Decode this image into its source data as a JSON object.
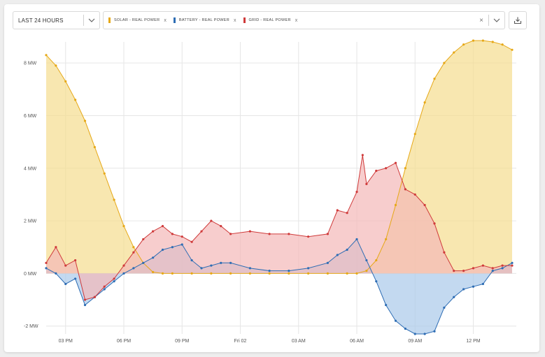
{
  "toolbar": {
    "range_label": "LAST 24 HOURS",
    "series_chips": [
      {
        "label": "SOLAR - REAL POWER",
        "color": "#e6a817"
      },
      {
        "label": "BATTERY - REAL POWER",
        "color": "#2e6db4"
      },
      {
        "label": "GRID - REAL POWER",
        "color": "#cf3a3a"
      }
    ],
    "clear_glyph": "×",
    "chip_remove_glyph": "x",
    "icons": [
      "chevron-down-icon",
      "close-icon",
      "download-icon"
    ]
  },
  "chart_data": {
    "type": "area",
    "x_unit": "hours",
    "xlim": [
      13.5,
      37.5
    ],
    "ylim": [
      -2.3,
      8.8
    ],
    "y_ticks": [
      -2,
      0,
      2,
      4,
      6,
      8
    ],
    "y_tick_labels": [
      "-2 MW",
      "0 MW",
      "2 MW",
      "4 MW",
      "6 MW",
      "8 MW"
    ],
    "x_ticks": [
      14.5,
      17.5,
      20.5,
      23.5,
      26.5,
      29.5,
      32.5,
      35.5
    ],
    "x_tick_labels": [
      "03 PM",
      "06 PM",
      "09 PM",
      "Fri 02",
      "03 AM",
      "06 AM",
      "09 AM",
      "12 PM"
    ],
    "grid": true,
    "series": [
      {
        "name": "SOLAR - REAL POWER",
        "color": "#e6a817",
        "fill": "#f5dd8e",
        "x": [
          13.5,
          14.0,
          14.5,
          15.0,
          15.5,
          16.0,
          16.5,
          17.0,
          17.5,
          18.0,
          18.5,
          19.0,
          19.5,
          20.0,
          21.0,
          22.0,
          23.0,
          24.0,
          25.0,
          26.0,
          27.0,
          28.0,
          29.0,
          29.5,
          30.0,
          30.5,
          31.0,
          31.5,
          32.0,
          32.5,
          33.0,
          33.5,
          34.0,
          34.5,
          35.0,
          35.5,
          36.0,
          36.5,
          37.0,
          37.5
        ],
        "values": [
          8.3,
          7.9,
          7.3,
          6.6,
          5.8,
          4.8,
          3.8,
          2.8,
          1.8,
          1.0,
          0.4,
          0.05,
          0,
          0,
          0,
          0,
          0,
          0,
          0,
          0,
          0,
          0,
          0,
          0,
          0.1,
          0.5,
          1.3,
          2.6,
          4.0,
          5.3,
          6.5,
          7.4,
          8.0,
          8.4,
          8.7,
          8.85,
          8.85,
          8.8,
          8.7,
          8.5
        ]
      },
      {
        "name": "BATTERY - REAL POWER",
        "color": "#2e6db4",
        "fill": "#a9c9ea",
        "x": [
          13.5,
          14.0,
          14.5,
          15.0,
          15.5,
          16.0,
          16.5,
          17.0,
          17.5,
          18.0,
          18.5,
          19.0,
          19.5,
          20.0,
          20.5,
          21.0,
          21.5,
          22.0,
          22.5,
          23.0,
          24.0,
          25.0,
          26.0,
          27.0,
          28.0,
          28.5,
          29.0,
          29.5,
          30.0,
          30.5,
          31.0,
          31.5,
          32.0,
          32.5,
          33.0,
          33.5,
          34.0,
          34.5,
          35.0,
          35.5,
          36.0,
          36.5,
          37.0,
          37.5
        ],
        "values": [
          0.2,
          0.0,
          -0.4,
          -0.2,
          -1.2,
          -0.9,
          -0.6,
          -0.3,
          0.0,
          0.2,
          0.4,
          0.6,
          0.9,
          1.0,
          1.1,
          0.5,
          0.2,
          0.3,
          0.4,
          0.4,
          0.2,
          0.1,
          0.1,
          0.2,
          0.4,
          0.7,
          0.9,
          1.3,
          0.5,
          -0.3,
          -1.2,
          -1.8,
          -2.1,
          -2.3,
          -2.3,
          -2.2,
          -1.3,
          -0.9,
          -0.6,
          -0.5,
          -0.4,
          0.1,
          0.2,
          0.4
        ]
      },
      {
        "name": "GRID - REAL POWER",
        "color": "#cf3a3a",
        "fill": "#f3b8b8",
        "x": [
          13.5,
          14.0,
          14.5,
          15.0,
          15.5,
          16.0,
          16.5,
          17.0,
          17.5,
          18.0,
          18.5,
          19.0,
          19.5,
          20.0,
          20.5,
          21.0,
          21.5,
          22.0,
          22.5,
          23.0,
          24.0,
          25.0,
          26.0,
          27.0,
          28.0,
          28.5,
          29.0,
          29.5,
          29.8,
          30.0,
          30.5,
          31.0,
          31.5,
          32.0,
          32.5,
          33.0,
          33.5,
          34.0,
          34.5,
          35.0,
          35.5,
          36.0,
          36.5,
          37.0,
          37.5
        ],
        "values": [
          0.4,
          1.0,
          0.3,
          0.5,
          -1.0,
          -0.9,
          -0.5,
          -0.2,
          0.3,
          0.8,
          1.3,
          1.6,
          1.8,
          1.5,
          1.4,
          1.2,
          1.6,
          2.0,
          1.8,
          1.5,
          1.6,
          1.5,
          1.5,
          1.4,
          1.5,
          2.4,
          2.3,
          3.1,
          4.5,
          3.4,
          3.9,
          4.0,
          4.2,
          3.2,
          3.0,
          2.6,
          1.9,
          0.8,
          0.1,
          0.1,
          0.2,
          0.3,
          0.2,
          0.3,
          0.3
        ]
      }
    ]
  }
}
